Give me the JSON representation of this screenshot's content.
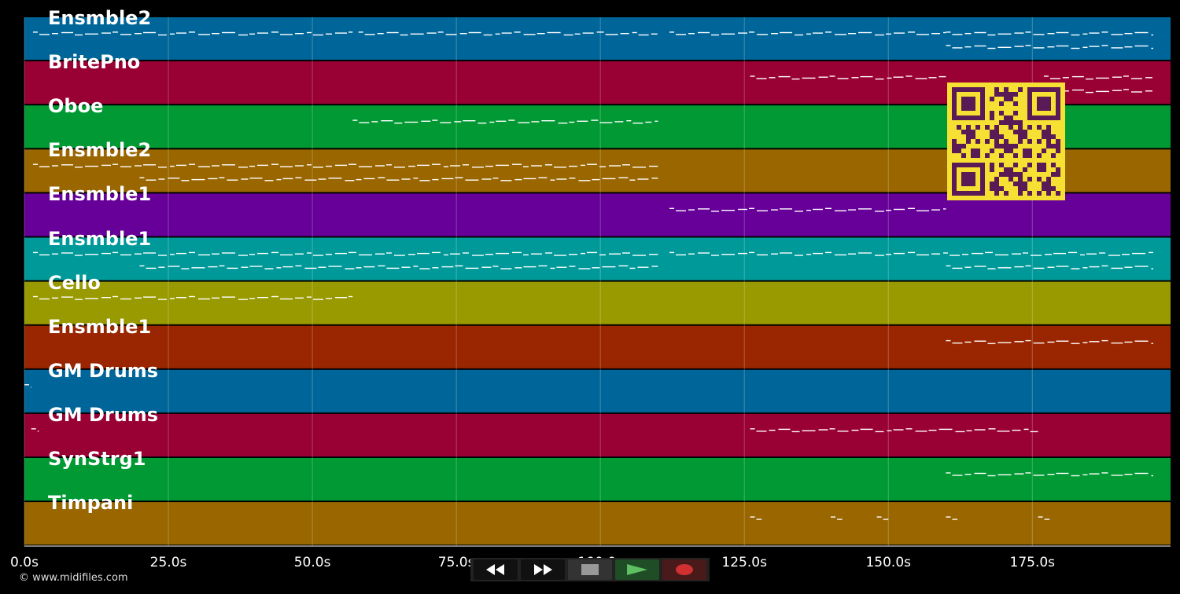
{
  "timeline": {
    "duration_seconds": 199,
    "ticks": [
      "0.0s",
      "25.0s",
      "50.0s",
      "75.0s",
      "100.0s",
      "125.0s",
      "150.0s",
      "175.0s"
    ],
    "tick_values": [
      0,
      25,
      50,
      75,
      100,
      125,
      150,
      175
    ]
  },
  "tracks": [
    {
      "label": "Ensmble2",
      "color": "#006699"
    },
    {
      "label": "BritePno",
      "color": "#990033"
    },
    {
      "label": "Oboe",
      "color": "#009933"
    },
    {
      "label": "Ensmble2",
      "color": "#996600"
    },
    {
      "label": "Ensmble1",
      "color": "#660099"
    },
    {
      "label": "Ensmble1",
      "color": "#009999"
    },
    {
      "label": "Cello",
      "color": "#999900"
    },
    {
      "label": "Ensmble1",
      "color": "#992600"
    },
    {
      "label": "GM Drums",
      "color": "#006699"
    },
    {
      "label": "GM Drums",
      "color": "#990033"
    },
    {
      "label": "SynStrg1",
      "color": "#009933"
    },
    {
      "label": "Timpani",
      "color": "#996600"
    }
  ],
  "note_segments": [
    {
      "track": 0,
      "from": 1.5,
      "to": 57,
      "row": 0
    },
    {
      "track": 0,
      "from": 58,
      "to": 110,
      "row": 0
    },
    {
      "track": 0,
      "from": 112,
      "to": 160,
      "row": 0
    },
    {
      "track": 0,
      "from": 160,
      "to": 196,
      "row": 0
    },
    {
      "track": 0,
      "from": 160,
      "to": 196,
      "row": 1
    },
    {
      "track": 1,
      "from": 126,
      "to": 160,
      "row": 0
    },
    {
      "track": 1,
      "from": 177,
      "to": 196,
      "row": 0
    },
    {
      "track": 1,
      "from": 177,
      "to": 196,
      "row": 1
    },
    {
      "track": 2,
      "from": 57,
      "to": 110,
      "row": 0
    },
    {
      "track": 3,
      "from": 1.5,
      "to": 110,
      "row": 0
    },
    {
      "track": 3,
      "from": 20,
      "to": 110,
      "row": 1
    },
    {
      "track": 4,
      "from": 112,
      "to": 160,
      "row": 0
    },
    {
      "track": 5,
      "from": 1.5,
      "to": 110,
      "row": 0
    },
    {
      "track": 5,
      "from": 20,
      "to": 110,
      "row": 1
    },
    {
      "track": 5,
      "from": 112,
      "to": 196,
      "row": 0
    },
    {
      "track": 5,
      "from": 160,
      "to": 196,
      "row": 1
    },
    {
      "track": 6,
      "from": 1.5,
      "to": 57,
      "row": 0
    },
    {
      "track": 7,
      "from": 160,
      "to": 196,
      "row": 0
    },
    {
      "track": 8,
      "from": 0,
      "to": 1.2,
      "row": 0
    },
    {
      "track": 9,
      "from": 1.2,
      "to": 2.5,
      "row": 0
    },
    {
      "track": 9,
      "from": 126,
      "to": 176,
      "row": 0
    },
    {
      "track": 10,
      "from": 160,
      "to": 196,
      "row": 0
    },
    {
      "track": 11,
      "from": 126,
      "to": 128,
      "row": 0
    },
    {
      "track": 11,
      "from": 140,
      "to": 142,
      "row": 0
    },
    {
      "track": 11,
      "from": 148,
      "to": 150,
      "row": 0
    },
    {
      "track": 11,
      "from": 160,
      "to": 162,
      "row": 0
    },
    {
      "track": 11,
      "from": 176,
      "to": 178,
      "row": 0
    }
  ],
  "copyright": "© www.midifiles.com",
  "transport": {
    "rewind_icon": "rewind-icon",
    "forward_icon": "fast-forward-icon",
    "stop_icon": "stop-icon",
    "play_icon": "play-icon",
    "record_icon": "record-icon",
    "play_color": "#5fbf63",
    "record_color": "#d03030"
  },
  "qr": {
    "fg": "#5a1a55",
    "bg": "#f5e033"
  }
}
